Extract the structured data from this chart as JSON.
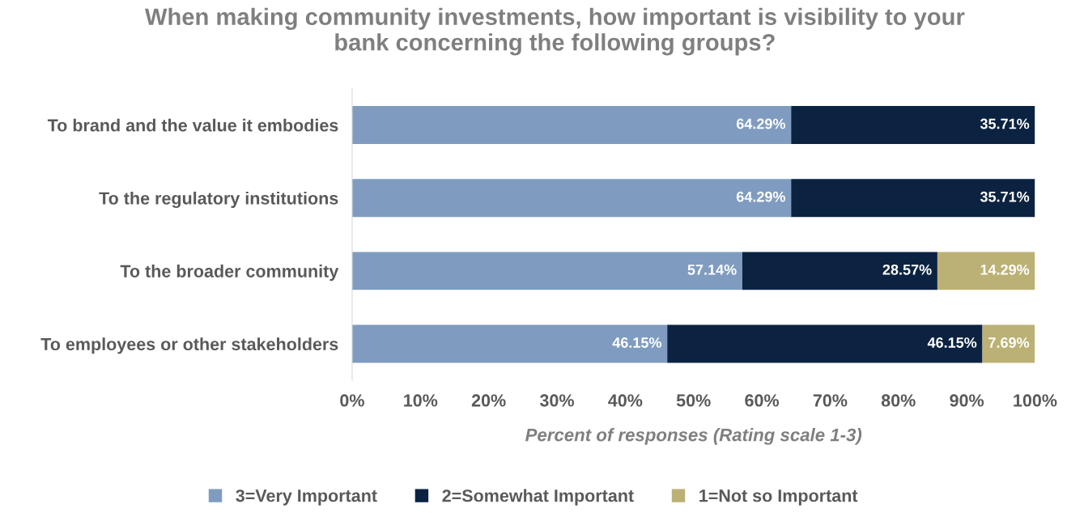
{
  "chart_data": {
    "type": "bar",
    "orientation": "horizontal",
    "stacked": true,
    "title": "When making community investments, how important is visibility to your\nbank concerning the following groups?",
    "xlabel": "Percent of responses (Rating scale 1-3)",
    "categories": [
      "To brand and the value it embodies",
      "To the regulatory institutions",
      "To the broader community",
      "To employees or other stakeholders"
    ],
    "series": [
      {
        "name": "3=Very Important",
        "color": "#7f9cc0",
        "values": [
          64.29,
          64.29,
          57.14,
          46.15
        ],
        "value_labels": [
          "64.29%",
          "64.29%",
          "57.14%",
          "46.15%"
        ]
      },
      {
        "name": "2=Somewhat Important",
        "color": "#0b2341",
        "values": [
          35.71,
          35.71,
          28.57,
          46.15
        ],
        "value_labels": [
          "35.71%",
          "35.71%",
          "28.57%",
          "46.15%"
        ]
      },
      {
        "name": "1=Not so Important",
        "color": "#bcb175",
        "values": [
          null,
          null,
          14.29,
          7.69
        ],
        "value_labels": [
          null,
          null,
          "14.29%",
          "7.69%"
        ]
      }
    ],
    "xlim": [
      0,
      100
    ],
    "xticks": [
      {
        "value": 0,
        "label": "0%"
      },
      {
        "value": 10,
        "label": "10%"
      },
      {
        "value": 20,
        "label": "20%"
      },
      {
        "value": 30,
        "label": "30%"
      },
      {
        "value": 40,
        "label": "40%"
      },
      {
        "value": 50,
        "label": "50%"
      },
      {
        "value": 60,
        "label": "60%"
      },
      {
        "value": 70,
        "label": "70%"
      },
      {
        "value": 80,
        "label": "80%"
      },
      {
        "value": 90,
        "label": "90%"
      },
      {
        "value": 100,
        "label": "100%"
      }
    ],
    "grid": false,
    "legend": "bottom"
  }
}
